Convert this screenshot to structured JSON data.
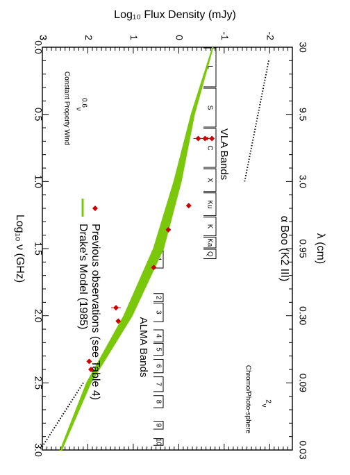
{
  "chart_data": {
    "type": "scatter",
    "title": "α Boo (K2 III)",
    "xlabel": "Log₁₀ ν (GHz)",
    "ylabel": "Log₁₀ Flux Density (mJy)",
    "x2label": "λ (cm)",
    "xlim": [
      0.0,
      3.0
    ],
    "ylim": [
      -2.5,
      3.0
    ],
    "x_ticks": [
      "0.0",
      "0.5",
      "1.0",
      "1.5",
      "2.0",
      "2.5",
      "3.0"
    ],
    "y_ticks": [
      "-2",
      "-1",
      "0",
      "1",
      "2",
      "3"
    ],
    "top_ticks": [
      "30",
      "9.5",
      "3.0",
      "0.95",
      "0.30",
      "0.09",
      "0.03"
    ],
    "colors": {
      "observations": "#cc0000",
      "model": "#7ac70c",
      "axes": "#000000"
    },
    "series": [
      {
        "name": "Previous observations (see Table 4)",
        "type": "scatter",
        "marker": "diamond",
        "points": [
          {
            "x": 0.68,
            "y": -0.73,
            "upper_limit": true
          },
          {
            "x": 0.68,
            "y": -0.58
          },
          {
            "x": 0.68,
            "y": -0.43
          },
          {
            "x": 1.18,
            "y": -0.22
          },
          {
            "x": 1.36,
            "y": 0.23
          },
          {
            "x": 1.64,
            "y": 0.55
          },
          {
            "x": 1.94,
            "y": 1.38
          },
          {
            "x": 2.04,
            "y": 1.33
          },
          {
            "x": 2.34,
            "y": 1.97
          },
          {
            "x": 2.4,
            "y": 1.93
          }
        ]
      },
      {
        "name": "Drake's Model (1985)",
        "type": "line",
        "upper": [
          [
            0.0,
            -0.75
          ],
          [
            0.5,
            -0.28
          ],
          [
            1.0,
            0.1
          ],
          [
            1.5,
            0.55
          ],
          [
            2.0,
            1.2
          ],
          [
            2.5,
            2.02
          ],
          [
            3.0,
            2.6
          ]
        ],
        "lower": [
          [
            0.0,
            -0.75
          ],
          [
            0.5,
            -0.34
          ],
          [
            1.0,
            -0.05
          ],
          [
            1.5,
            0.34
          ],
          [
            2.0,
            1.03
          ],
          [
            2.5,
            1.94
          ],
          [
            3.0,
            2.58
          ]
        ]
      },
      {
        "name": "ν^0.6",
        "type": "line",
        "style": "dotted",
        "points": [
          [
            0.1,
            -1.98
          ],
          [
            1.0,
            -1.45
          ]
        ]
      },
      {
        "name": "ν^2",
        "type": "line",
        "style": "dotted",
        "points": [
          [
            2.5,
            2.1
          ],
          [
            3.0,
            3.05
          ]
        ]
      }
    ],
    "annotations": {
      "wind_line": "Constant Property Wind",
      "wind_power": "ν",
      "wind_power_exp": "0.6",
      "chromo_line": "Chromo/Photo-sphere",
      "chromo_power": "ν",
      "chromo_power_exp": "2"
    },
    "band_groups": {
      "vla": {
        "title": "VLA Bands",
        "bands": [
          {
            "label": "L",
            "x0": 0.0,
            "x1": 0.3
          },
          {
            "label": "S",
            "x0": 0.3,
            "x1": 0.6
          },
          {
            "label": "C",
            "x0": 0.6,
            "x1": 0.9
          },
          {
            "label": "X",
            "x0": 0.9,
            "x1": 1.08
          },
          {
            "label": "Ku",
            "x0": 1.08,
            "x1": 1.26
          },
          {
            "label": "K",
            "x0": 1.26,
            "x1": 1.41
          },
          {
            "label": "Ka",
            "x0": 1.41,
            "x1": 1.5
          },
          {
            "label": "Q",
            "x0": 1.5,
            "x1": 1.58
          }
        ]
      },
      "alma": {
        "title": "ALMA Bands",
        "bands": [
          {
            "label": "1",
            "x0": 1.51,
            "x1": 1.65
          },
          {
            "label": "2",
            "x0": 1.83,
            "x1": 1.9
          },
          {
            "label": "3",
            "x0": 1.9,
            "x1": 2.05
          },
          {
            "label": "4",
            "x0": 2.1,
            "x1": 2.2
          },
          {
            "label": "5",
            "x0": 2.2,
            "x1": 2.3
          },
          {
            "label": "6",
            "x0": 2.32,
            "x1": 2.43
          },
          {
            "label": "7",
            "x0": 2.45,
            "x1": 2.57
          },
          {
            "label": "8",
            "x0": 2.59,
            "x1": 2.69
          },
          {
            "label": "9",
            "x0": 2.78,
            "x1": 2.85
          },
          {
            "label": "10",
            "x0": 2.91,
            "x1": 2.97
          }
        ]
      }
    },
    "legend": [
      {
        "label": "Previous observations (see Table 4)",
        "color": "#cc0000",
        "marker": "diamond"
      },
      {
        "label": "Drake's Model (1985)",
        "color": "#7ac70c",
        "marker": "line"
      }
    ],
    "legend_position": "lower-left (rotated)",
    "orientation": "rotated 90° clockwise"
  }
}
